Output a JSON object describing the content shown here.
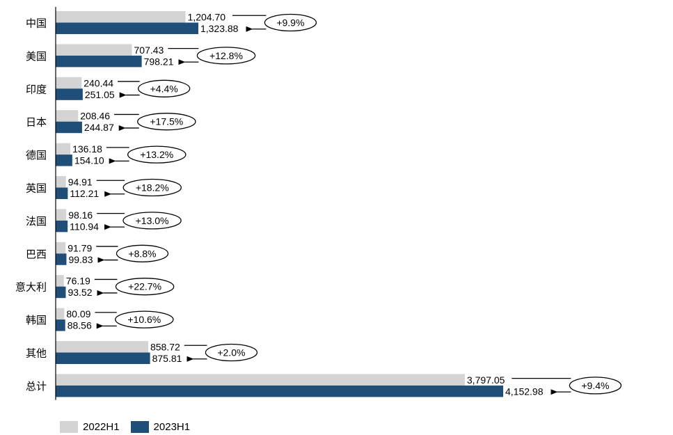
{
  "chart_data": {
    "type": "bar",
    "orientation": "horizontal",
    "categories": [
      "中国",
      "美国",
      "印度",
      "日本",
      "德国",
      "英国",
      "法国",
      "巴西",
      "意大利",
      "韩国",
      "其他",
      "总计"
    ],
    "series": [
      {
        "name": "2022H1",
        "color": "#d4d4d4",
        "values": [
          1204.7,
          707.43,
          240.44,
          208.46,
          136.18,
          94.91,
          98.16,
          91.79,
          76.19,
          80.09,
          858.72,
          3797.05
        ],
        "labels": [
          "1,204.70",
          "707.43",
          "240.44",
          "208.46",
          "136.18",
          "94.91",
          "98.16",
          "91.79",
          "76.19",
          "80.09",
          "858.72",
          "3,797.05"
        ]
      },
      {
        "name": "2023H1",
        "color": "#1f4e79",
        "values": [
          1323.88,
          798.21,
          251.05,
          244.87,
          154.1,
          112.21,
          110.94,
          99.83,
          93.52,
          88.56,
          875.81,
          4152.98
        ],
        "labels": [
          "1,323.88",
          "798.21",
          "251.05",
          "244.87",
          "154.10",
          "112.21",
          "110.94",
          "99.83",
          "93.52",
          "88.56",
          "875.81",
          "4,152.98"
        ]
      }
    ],
    "growth_labels": [
      "+9.9%",
      "+12.8%",
      "+4.4%",
      "+17.5%",
      "+13.2%",
      "+18.2%",
      "+13.0%",
      "+8.8%",
      "+22.7%",
      "+10.6%",
      "+2.0%",
      "+9.4%"
    ],
    "xlim": [
      0,
      4152.98
    ],
    "legend_position": "bottom-left",
    "grid": false
  },
  "legend": {
    "item1": "2022H1",
    "item2": "2023H1"
  }
}
